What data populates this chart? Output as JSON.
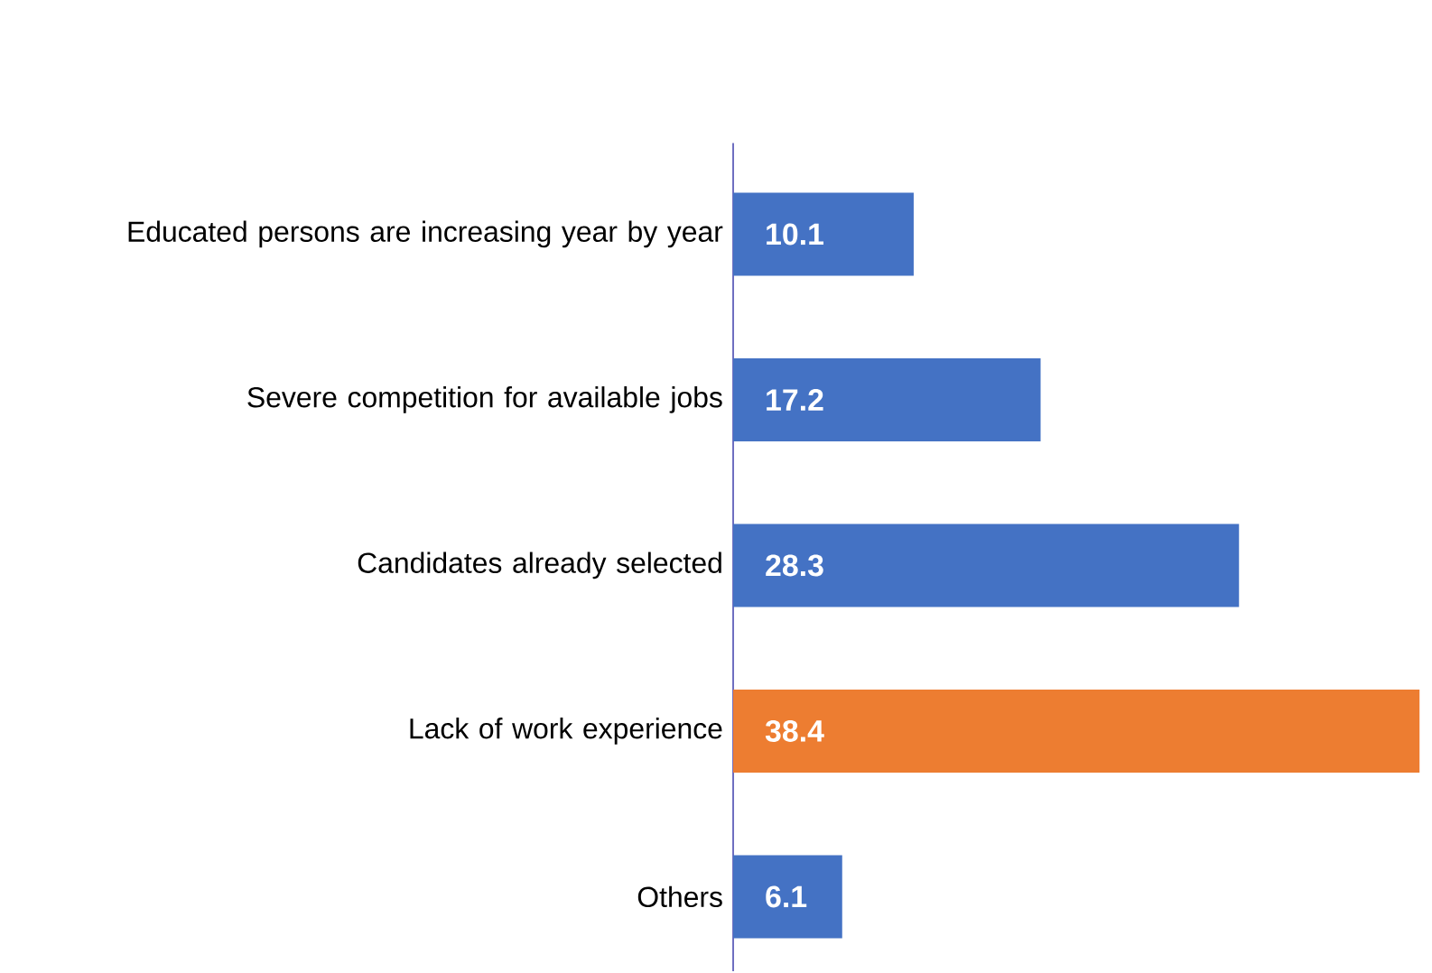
{
  "chart_data": {
    "type": "bar",
    "orientation": "horizontal",
    "categories": [
      "Educated persons are increasing year by year",
      "Severe competition for available jobs",
      "Candidates already selected",
      "Lack of work experience",
      "Others"
    ],
    "values": [
      10.1,
      17.2,
      28.3,
      38.4,
      6.1
    ],
    "colors": [
      "#4472c4",
      "#4472c4",
      "#4472c4",
      "#ed7d31",
      "#4472c4"
    ],
    "data_labels": true
  }
}
